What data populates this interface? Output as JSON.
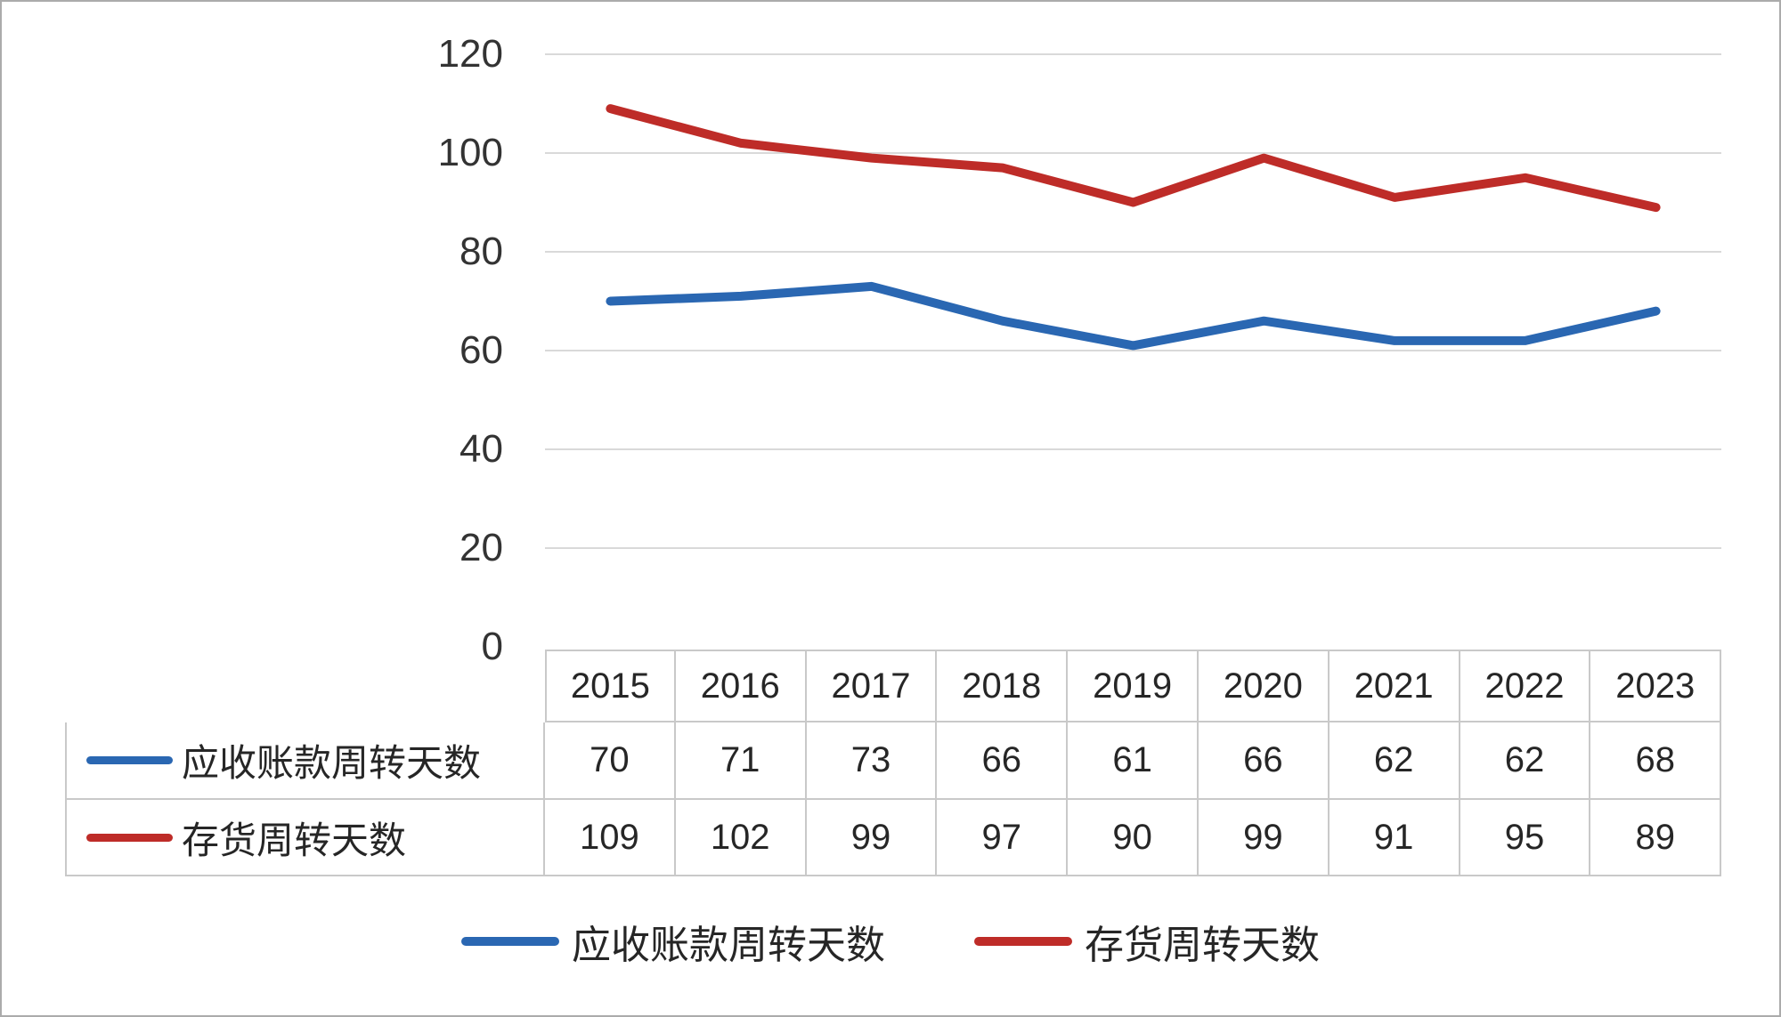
{
  "chart_data": {
    "type": "line",
    "title": "",
    "xlabel": "",
    "ylabel": "",
    "categories": [
      "2015",
      "2016",
      "2017",
      "2018",
      "2019",
      "2020",
      "2021",
      "2022",
      "2023"
    ],
    "series": [
      {
        "name": "应收账款周转天数",
        "color": "#2a67b2",
        "values": [
          70,
          71,
          73,
          66,
          61,
          66,
          62,
          62,
          68
        ]
      },
      {
        "name": "存货周转天数",
        "color": "#be2c28",
        "values": [
          109,
          102,
          99,
          97,
          90,
          99,
          91,
          95,
          89
        ]
      }
    ],
    "ylim": [
      0,
      120
    ],
    "yticks": [
      0,
      20,
      40,
      60,
      80,
      100,
      120
    ],
    "grid": true,
    "gridline_color": "#d9d9d9",
    "table_border_color": "#c9c9c9",
    "legend_position": "bottom",
    "legend_entries": [
      "应收账款周转天数",
      "存货周转天数"
    ]
  }
}
